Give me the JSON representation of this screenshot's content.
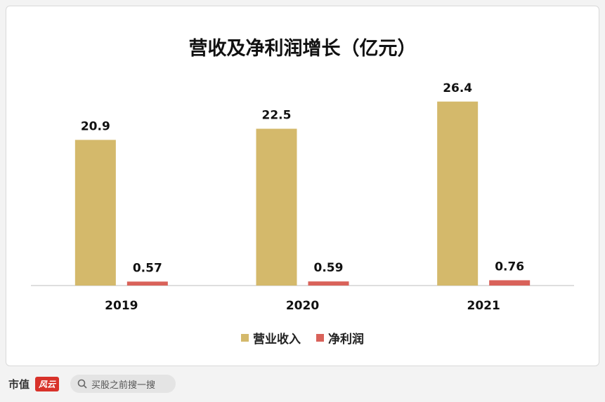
{
  "chart_data": {
    "type": "bar",
    "title": "营收及净利润增长（亿元）",
    "categories": [
      "2019",
      "2020",
      "2021"
    ],
    "series": [
      {
        "name": "营业收入",
        "values": [
          20.9,
          22.5,
          26.4
        ],
        "labels": [
          "20.9",
          "22.5",
          "26.4"
        ],
        "color": "#d4b96b"
      },
      {
        "name": "净利润",
        "values": [
          0.57,
          0.59,
          0.76
        ],
        "labels": [
          "0.57",
          "0.59",
          "0.76"
        ],
        "color": "#d9625a"
      }
    ],
    "ylim": [
      0,
      30
    ],
    "grid": false,
    "legend": "bottom"
  },
  "footer": {
    "logo_text": "市值",
    "logo_badge": "风云",
    "search_icon": "search-icon",
    "search_placeholder": "买股之前搜一搜"
  }
}
